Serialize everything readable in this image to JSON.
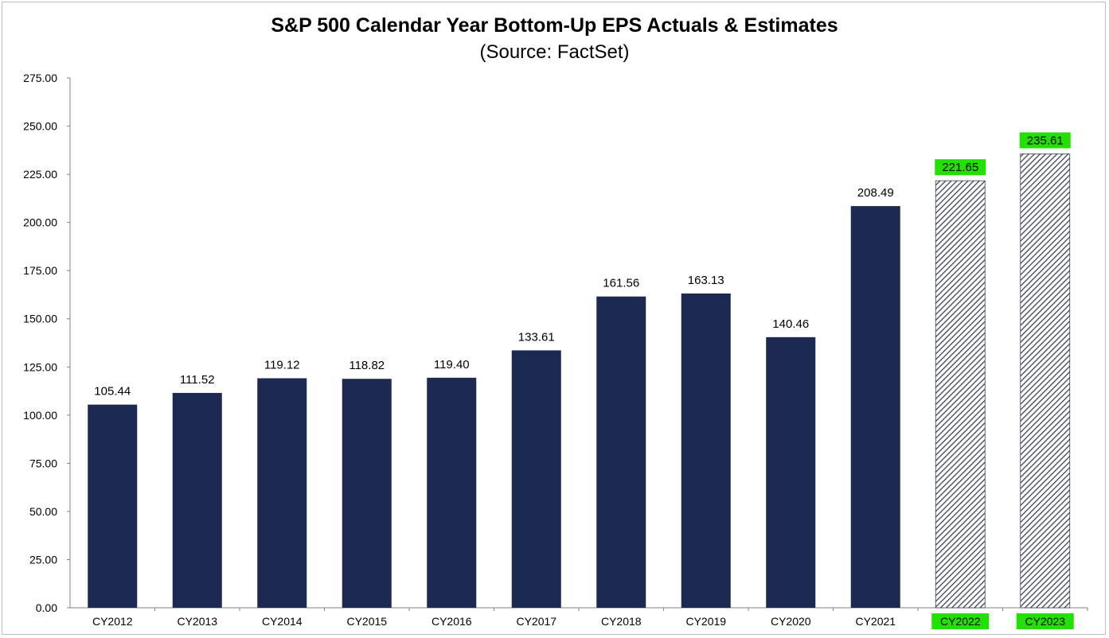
{
  "chart_data": {
    "type": "bar",
    "title": "S&P 500 Calendar Year Bottom-Up EPS Actuals & Estimates",
    "subtitle": "(Source: FactSet)",
    "xlabel": "",
    "ylabel": "",
    "categories": [
      "CY2012",
      "CY2013",
      "CY2014",
      "CY2015",
      "CY2016",
      "CY2017",
      "CY2018",
      "CY2019",
      "CY2020",
      "CY2021",
      "CY2022",
      "CY2023"
    ],
    "values": [
      105.44,
      111.52,
      119.12,
      118.82,
      119.4,
      133.61,
      161.56,
      163.13,
      140.46,
      208.49,
      221.65,
      235.61
    ],
    "value_labels": [
      "105.44",
      "111.52",
      "119.12",
      "118.82",
      "119.40",
      "133.61",
      "161.56",
      "163.13",
      "140.46",
      "208.49",
      "221.65",
      "235.61"
    ],
    "estimate": [
      false,
      false,
      false,
      false,
      false,
      false,
      false,
      false,
      false,
      false,
      true,
      true
    ],
    "highlighted": [
      false,
      false,
      false,
      false,
      false,
      false,
      false,
      false,
      false,
      false,
      true,
      true
    ],
    "ylim": [
      0,
      275
    ],
    "yticks": [
      "0.00",
      "25.00",
      "50.00",
      "75.00",
      "100.00",
      "125.00",
      "150.00",
      "175.00",
      "200.00",
      "225.00",
      "250.00",
      "275.00"
    ],
    "grid": false,
    "legend": "none",
    "colors": {
      "actual": "#1c2951",
      "estimate_hatch": "#3a4256",
      "highlight": "#22e000",
      "axis": "#808080"
    }
  }
}
